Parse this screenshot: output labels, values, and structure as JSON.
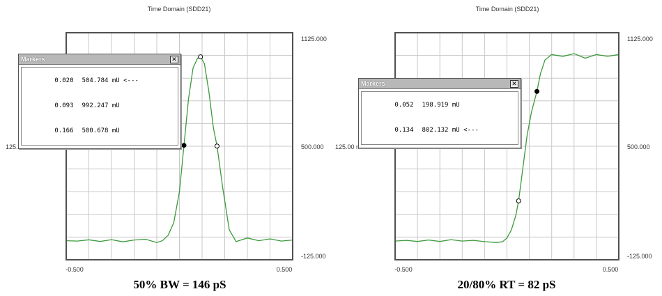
{
  "chart_data": [
    {
      "type": "line",
      "title": "Time Domain (SDD21)",
      "x_range": [
        -0.5,
        0.5
      ],
      "y_range": [
        -125,
        1125
      ],
      "x_ticks": [
        "-0.500",
        "0.500"
      ],
      "right_ticks": [
        "1125.000",
        "500.000",
        "-125.000"
      ],
      "left_label": "125.00 mU /",
      "grid": true,
      "line_color": "#3c9a3c",
      "x": [
        -0.5,
        -0.45,
        -0.4,
        -0.35,
        -0.3,
        -0.25,
        -0.2,
        -0.15,
        -0.1,
        -0.075,
        -0.05,
        -0.025,
        0.0,
        0.02,
        0.04,
        0.06,
        0.08,
        0.093,
        0.11,
        0.13,
        0.15,
        0.166,
        0.19,
        0.22,
        0.25,
        0.3,
        0.35,
        0.4,
        0.45,
        0.5
      ],
      "y": [
        -20,
        -22,
        -15,
        -24,
        -14,
        -26,
        -16,
        -12,
        -30,
        -20,
        10,
        80,
        250,
        505,
        760,
        930,
        985,
        992,
        955,
        800,
        600,
        500,
        280,
        40,
        -25,
        -5,
        -20,
        -10,
        -22,
        -16
      ],
      "markers": [
        {
          "pos": "0.020",
          "value": "504.784 mU <---",
          "x": 0.02,
          "y": 505,
          "filled": true
        },
        {
          "pos": "0.093",
          "value": "992.247 mU",
          "x": 0.093,
          "y": 992,
          "filled": false
        },
        {
          "pos": "0.166",
          "value": "500.678 mU",
          "x": 0.166,
          "y": 501,
          "filled": false
        }
      ],
      "caption": "50% BW = 146 pS"
    },
    {
      "type": "line",
      "title": "Time Domain (SDD21)",
      "x_range": [
        -0.5,
        0.5
      ],
      "y_range": [
        -125,
        1125
      ],
      "x_ticks": [
        "-0.500",
        "0.500"
      ],
      "right_ticks": [
        "1125.000",
        "500.000",
        "-125.000"
      ],
      "left_label": "125.00 mU /",
      "grid": true,
      "line_color": "#3c9a3c",
      "x": [
        -0.5,
        -0.45,
        -0.4,
        -0.35,
        -0.3,
        -0.25,
        -0.2,
        -0.15,
        -0.1,
        -0.05,
        -0.02,
        0.0,
        0.02,
        0.04,
        0.052,
        0.07,
        0.09,
        0.11,
        0.134,
        0.15,
        0.17,
        0.2,
        0.25,
        0.3,
        0.35,
        0.4,
        0.45,
        0.5
      ],
      "y": [
        -22,
        -18,
        -24,
        -16,
        -24,
        -14,
        -22,
        -18,
        -25,
        -30,
        -26,
        -5,
        40,
        120,
        199,
        370,
        560,
        690,
        802,
        900,
        975,
        1005,
        995,
        1010,
        985,
        1005,
        995,
        1005
      ],
      "markers": [
        {
          "pos": "0.052",
          "value": "198.919 mU",
          "x": 0.052,
          "y": 199,
          "filled": false
        },
        {
          "pos": "0.134",
          "value": "802.132 mU <---",
          "x": 0.134,
          "y": 802,
          "filled": true
        }
      ],
      "caption": "20/80% RT = 82 pS"
    }
  ],
  "markers_window": {
    "title": "Markers",
    "close_glyph": "✕"
  }
}
